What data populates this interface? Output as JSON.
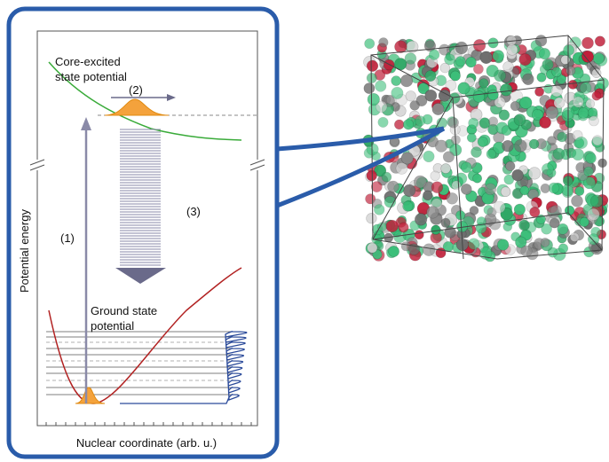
{
  "labels": {
    "core_excited": [
      "Core-excited",
      "state potential"
    ],
    "step2": "(2)",
    "step3": "(3)",
    "step1": "(1)",
    "y_axis": "Potential energy",
    "ground": [
      "Ground state",
      "potential"
    ],
    "x_axis": "Nuclear coordinate (arb. u.)"
  }
}
